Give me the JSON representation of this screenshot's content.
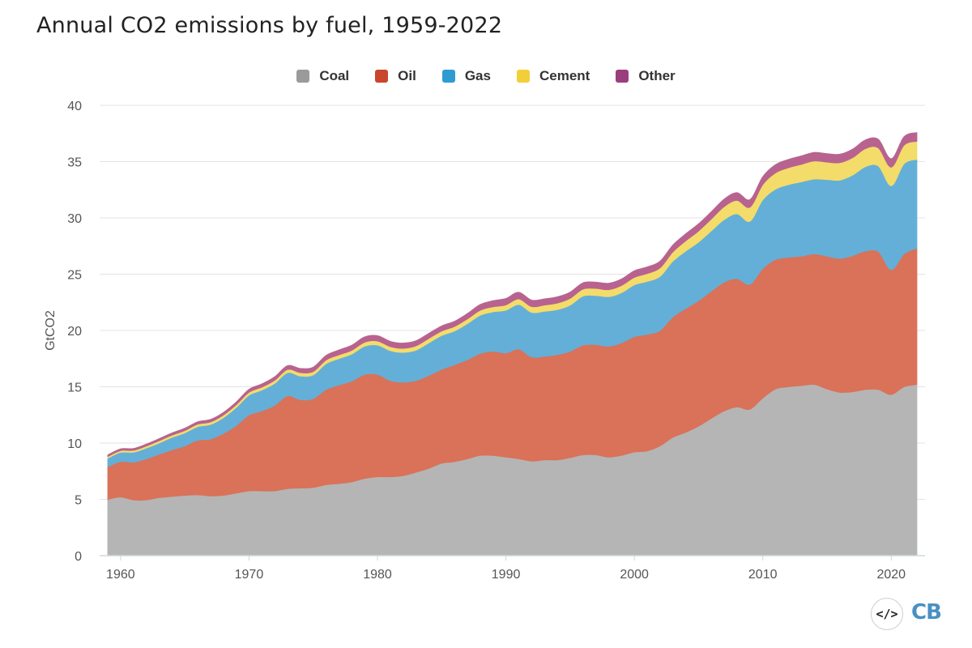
{
  "chart_data": {
    "type": "area",
    "stacked": true,
    "title": "Annual CO2 emissions by fuel, 1959-2022",
    "ylabel": "GtCO2",
    "xlabel": "",
    "xlim": [
      1959,
      2022
    ],
    "ylim": [
      0,
      40
    ],
    "x_ticks": [
      "1960",
      "1970",
      "1980",
      "1990",
      "2000",
      "2010",
      "2020"
    ],
    "y_ticks": [
      "0",
      "5",
      "10",
      "15",
      "20",
      "25",
      "30",
      "35",
      "40"
    ],
    "grid": "horizontal",
    "legend_position": "top",
    "x": [
      1959,
      1960,
      1961,
      1962,
      1963,
      1964,
      1965,
      1966,
      1967,
      1968,
      1969,
      1970,
      1971,
      1972,
      1973,
      1974,
      1975,
      1976,
      1977,
      1978,
      1979,
      1980,
      1981,
      1982,
      1983,
      1984,
      1985,
      1986,
      1987,
      1988,
      1989,
      1990,
      1991,
      1992,
      1993,
      1994,
      1995,
      1996,
      1997,
      1998,
      1999,
      2000,
      2001,
      2002,
      2003,
      2004,
      2005,
      2006,
      2007,
      2008,
      2009,
      2010,
      2011,
      2012,
      2013,
      2014,
      2015,
      2016,
      2017,
      2018,
      2019,
      2020,
      2021,
      2022
    ],
    "series": [
      {
        "name": "Coal",
        "color": "#b5b5b5",
        "legend_color": "#9a9a9a",
        "values": [
          5.0,
          5.2,
          4.95,
          4.95,
          5.15,
          5.25,
          5.35,
          5.4,
          5.3,
          5.35,
          5.55,
          5.75,
          5.75,
          5.75,
          5.95,
          6.0,
          6.05,
          6.3,
          6.4,
          6.55,
          6.85,
          7.0,
          7.0,
          7.1,
          7.4,
          7.75,
          8.2,
          8.35,
          8.6,
          8.9,
          8.9,
          8.75,
          8.6,
          8.4,
          8.5,
          8.5,
          8.7,
          8.95,
          8.95,
          8.75,
          8.9,
          9.2,
          9.3,
          9.75,
          10.5,
          10.95,
          11.5,
          12.2,
          12.85,
          13.2,
          13.0,
          14.0,
          14.8,
          15.0,
          15.1,
          15.2,
          14.8,
          14.5,
          14.55,
          14.75,
          14.75,
          14.3,
          15.0,
          15.2
        ]
      },
      {
        "name": "Oil",
        "color": "#d97258",
        "legend_color": "#c9452c",
        "values": [
          2.9,
          3.15,
          3.35,
          3.65,
          3.85,
          4.15,
          4.4,
          4.85,
          5.05,
          5.5,
          6.0,
          6.75,
          7.1,
          7.6,
          8.25,
          7.85,
          7.9,
          8.45,
          8.75,
          8.95,
          9.25,
          9.1,
          8.55,
          8.3,
          8.15,
          8.25,
          8.35,
          8.6,
          8.8,
          9.05,
          9.25,
          9.25,
          9.75,
          9.25,
          9.2,
          9.35,
          9.45,
          9.75,
          9.8,
          9.85,
          10.0,
          10.25,
          10.35,
          10.25,
          10.7,
          11.0,
          11.15,
          11.3,
          11.45,
          11.4,
          11.1,
          11.5,
          11.5,
          11.5,
          11.5,
          11.6,
          11.8,
          11.9,
          12.1,
          12.3,
          12.25,
          11.1,
          11.8,
          12.1
        ]
      },
      {
        "name": "Gas",
        "color": "#64afd8",
        "legend_color": "#2f9bd3",
        "values": [
          0.75,
          0.82,
          0.88,
          0.95,
          1.0,
          1.1,
          1.15,
          1.2,
          1.3,
          1.4,
          1.6,
          1.75,
          1.85,
          1.95,
          2.05,
          2.1,
          2.1,
          2.3,
          2.35,
          2.4,
          2.5,
          2.6,
          2.65,
          2.65,
          2.7,
          2.9,
          3.0,
          3.0,
          3.2,
          3.4,
          3.5,
          3.8,
          3.95,
          3.95,
          4.0,
          4.0,
          4.1,
          4.35,
          4.35,
          4.4,
          4.45,
          4.6,
          4.7,
          4.8,
          4.95,
          5.1,
          5.2,
          5.35,
          5.55,
          5.75,
          5.6,
          6.1,
          6.25,
          6.45,
          6.6,
          6.65,
          6.8,
          6.95,
          7.15,
          7.5,
          7.6,
          7.45,
          8.0,
          7.9
        ]
      },
      {
        "name": "Cement",
        "color": "#f3dc6a",
        "legend_color": "#f2cf38",
        "values": [
          0.15,
          0.16,
          0.17,
          0.18,
          0.2,
          0.2,
          0.21,
          0.22,
          0.22,
          0.23,
          0.24,
          0.25,
          0.26,
          0.27,
          0.28,
          0.3,
          0.3,
          0.32,
          0.33,
          0.34,
          0.35,
          0.36,
          0.36,
          0.36,
          0.38,
          0.39,
          0.4,
          0.4,
          0.42,
          0.44,
          0.45,
          0.47,
          0.5,
          0.52,
          0.55,
          0.58,
          0.6,
          0.62,
          0.63,
          0.62,
          0.64,
          0.66,
          0.7,
          0.75,
          0.82,
          0.9,
          0.98,
          1.05,
          1.15,
          1.2,
          1.25,
          1.35,
          1.45,
          1.5,
          1.55,
          1.6,
          1.55,
          1.55,
          1.55,
          1.6,
          1.6,
          1.65,
          1.65,
          1.6
        ]
      },
      {
        "name": "Other",
        "color": "#b8638f",
        "legend_color": "#9b3e7e",
        "values": [
          0.15,
          0.16,
          0.17,
          0.18,
          0.2,
          0.2,
          0.21,
          0.22,
          0.23,
          0.24,
          0.26,
          0.28,
          0.3,
          0.32,
          0.35,
          0.38,
          0.4,
          0.42,
          0.44,
          0.46,
          0.48,
          0.48,
          0.48,
          0.47,
          0.46,
          0.46,
          0.46,
          0.47,
          0.49,
          0.52,
          0.55,
          0.58,
          0.6,
          0.58,
          0.56,
          0.56,
          0.56,
          0.57,
          0.57,
          0.58,
          0.59,
          0.6,
          0.6,
          0.61,
          0.63,
          0.64,
          0.65,
          0.66,
          0.68,
          0.7,
          0.68,
          0.72,
          0.74,
          0.75,
          0.76,
          0.77,
          0.76,
          0.76,
          0.77,
          0.78,
          0.78,
          0.76,
          0.77,
          0.78
        ]
      }
    ]
  },
  "footer": {
    "embed_icon": "code-icon",
    "embed_label": "</>",
    "logo_text": "CB"
  }
}
